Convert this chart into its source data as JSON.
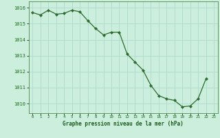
{
  "x": [
    0,
    1,
    2,
    3,
    4,
    5,
    6,
    7,
    8,
    9,
    10,
    11,
    12,
    13,
    14,
    15,
    16,
    17,
    18,
    19,
    20,
    21,
    22,
    23
  ],
  "y": [
    1015.7,
    1015.55,
    1015.85,
    1015.6,
    1015.65,
    1015.85,
    1015.75,
    1015.2,
    1014.7,
    1014.3,
    1014.47,
    1014.47,
    1013.1,
    1012.6,
    1012.1,
    1011.15,
    1010.5,
    1010.3,
    1010.2,
    1009.8,
    1009.85,
    1010.3,
    1011.55,
    null
  ],
  "line_color": "#2d6a2d",
  "marker_color": "#2d6a2d",
  "bg_color": "#cceedd",
  "grid_color": "#b0ddd0",
  "xlabel": "Graphe pression niveau de la mer (hPa)",
  "xlabel_color": "#1a5c1a",
  "tick_label_color": "#1a6b1a",
  "ylabel_values": [
    1010,
    1011,
    1012,
    1013,
    1014,
    1015,
    1016
  ],
  "ylim": [
    1009.4,
    1016.4
  ],
  "xlim": [
    -0.5,
    23.5
  ]
}
